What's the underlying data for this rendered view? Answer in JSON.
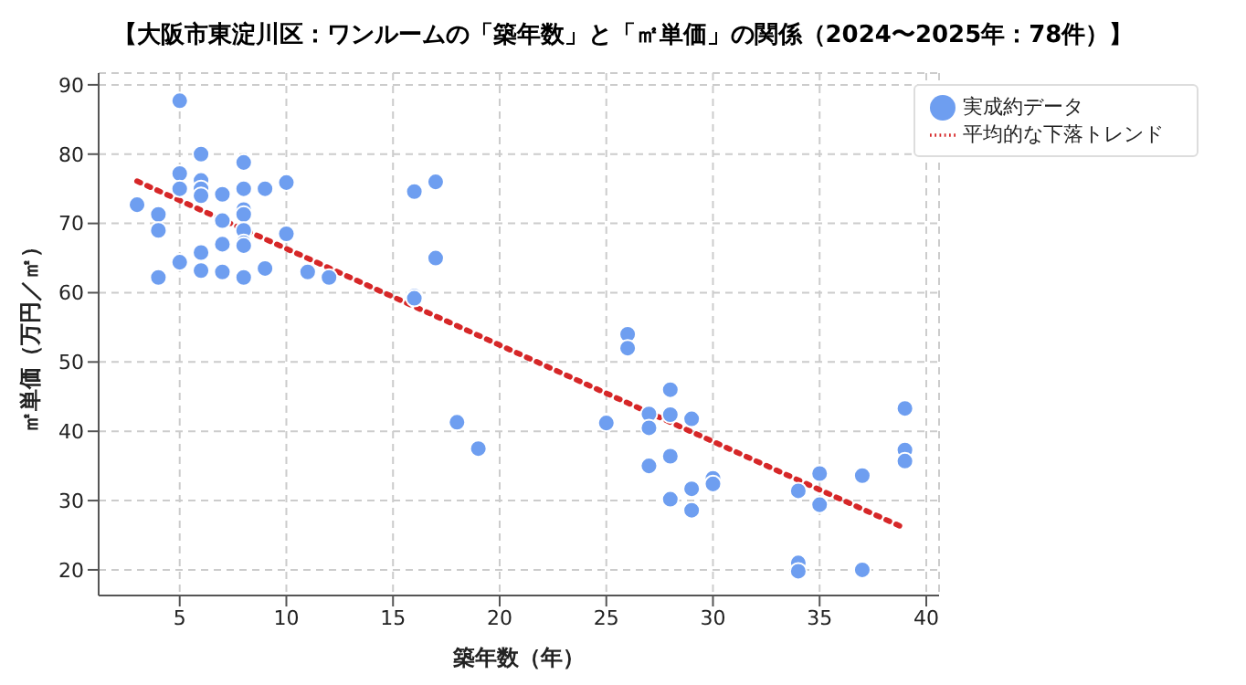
{
  "chart_data": {
    "type": "scatter",
    "title": "【大阪市東淀川区：ワンルームの「築年数」と「㎡単価」の関係（2024〜2025年：78件）】",
    "xlabel": "築年数（年）",
    "ylabel": "㎡単価（万円／㎡）",
    "xlim": [
      1.2,
      40.6
    ],
    "xticks": [
      5,
      10,
      15,
      20,
      25,
      30,
      35,
      40
    ],
    "ylim": [
      16.3,
      91.7
    ],
    "yticks": [
      20,
      30,
      40,
      50,
      60,
      70,
      80,
      90
    ],
    "grid": true,
    "legend": "top right",
    "marker": "circle",
    "series": [
      {
        "name": "実成約データ",
        "color": "#6e9ef0",
        "x": [
          3,
          4,
          4,
          4,
          5,
          5,
          5,
          5,
          6,
          6,
          6,
          6,
          6,
          6,
          7,
          7,
          7,
          7,
          8,
          8,
          8,
          8,
          8,
          8,
          8,
          8,
          9,
          9,
          10,
          10,
          11,
          12,
          16,
          16,
          16,
          17,
          17,
          18,
          19,
          25,
          26,
          26,
          27,
          27,
          27,
          28,
          28,
          28,
          28,
          29,
          29,
          29,
          30,
          30,
          34,
          34,
          34,
          35,
          35,
          37,
          37,
          39,
          39,
          39
        ],
        "values": [
          72.7,
          71.3,
          69,
          62.2,
          87.7,
          77.2,
          75,
          64.4,
          80,
          76.2,
          75,
          74,
          65.8,
          63.2,
          74.2,
          70.4,
          67,
          63,
          78.8,
          75,
          72,
          71.3,
          69,
          67.2,
          66.8,
          62.2,
          75,
          63.5,
          75.9,
          68.5,
          63,
          62.2,
          74.6,
          59.5,
          59.2,
          76,
          65,
          41.3,
          37.5,
          41.2,
          54,
          52,
          42.5,
          40.5,
          35,
          46,
          42.4,
          36.4,
          30.2,
          41.8,
          31.7,
          28.6,
          33.2,
          32.4,
          31.4,
          21,
          19.8,
          33.9,
          29.4,
          33.6,
          20,
          43.3,
          37.3,
          35.7
        ]
      },
      {
        "name": "平均的な下落トレンド",
        "type": "line",
        "color": "#d62728",
        "line_style": "dotted",
        "marker": "none",
        "x": [
          3,
          39
        ],
        "values": [
          76.1,
          26.0
        ]
      }
    ]
  }
}
